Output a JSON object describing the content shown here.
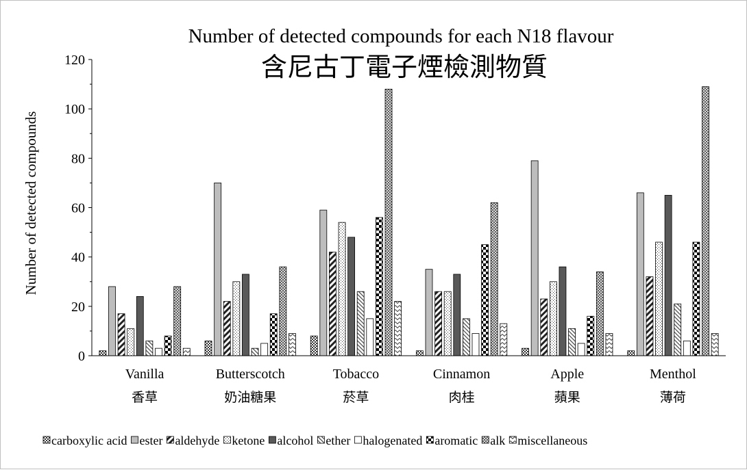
{
  "chart_data": {
    "type": "bar",
    "title": "Number of detected compounds for each N18 flavour",
    "subtitle": "含尼古丁電子煙檢測物質",
    "ylabel": "Number of detected compounds",
    "xlabel": "",
    "ylim": [
      0,
      120
    ],
    "yticks": [
      0,
      20,
      40,
      60,
      80,
      100,
      120
    ],
    "grid": false,
    "legend_position": "bottom",
    "categories": [
      {
        "name": "Vanilla",
        "name_zh": "香草"
      },
      {
        "name": "Butterscotch",
        "name_zh": "奶油糖果"
      },
      {
        "name": "Tobacco",
        "name_zh": "菸草"
      },
      {
        "name": "Cinnamon",
        "name_zh": "肉桂"
      },
      {
        "name": "Apple",
        "name_zh": "蘋果"
      },
      {
        "name": "Menthol",
        "name_zh": "薄荷"
      }
    ],
    "series": [
      {
        "name": "carboxylic acid",
        "pattern": "checker",
        "values": [
          2,
          6,
          8,
          2,
          3,
          2
        ]
      },
      {
        "name": "ester",
        "pattern": "lightgray",
        "values": [
          28,
          70,
          59,
          35,
          79,
          66
        ]
      },
      {
        "name": "aldehyde",
        "pattern": "wide-diagonal",
        "values": [
          17,
          22,
          42,
          26,
          23,
          32
        ]
      },
      {
        "name": "ketone",
        "pattern": "dots",
        "values": [
          11,
          30,
          54,
          26,
          30,
          46
        ]
      },
      {
        "name": "alcohol",
        "pattern": "darkgray",
        "values": [
          24,
          33,
          48,
          33,
          36,
          65
        ]
      },
      {
        "name": "ether",
        "pattern": "fine-diagonal",
        "values": [
          6,
          3,
          26,
          15,
          11,
          21
        ]
      },
      {
        "name": "halogenated",
        "pattern": "white",
        "values": [
          3,
          5,
          15,
          9,
          5,
          6
        ]
      },
      {
        "name": "aromatic",
        "pattern": "large-checker",
        "values": [
          8,
          17,
          56,
          45,
          16,
          46
        ]
      },
      {
        "name": "alk",
        "pattern": "crosshatch",
        "values": [
          28,
          36,
          108,
          62,
          34,
          109
        ]
      },
      {
        "name": "miscellaneous",
        "pattern": "zigzag",
        "values": [
          3,
          9,
          22,
          13,
          9,
          9
        ]
      }
    ]
  }
}
